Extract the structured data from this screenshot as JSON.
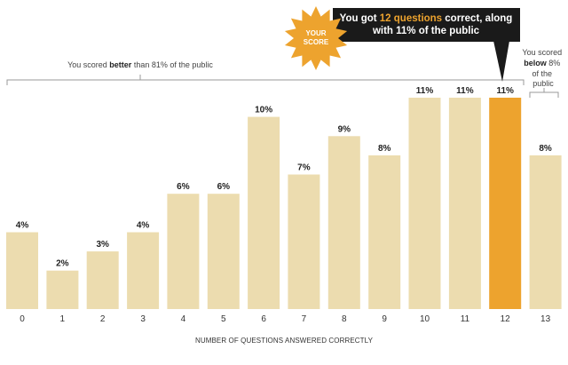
{
  "chart_data": {
    "type": "bar",
    "categories": [
      "0",
      "1",
      "2",
      "3",
      "4",
      "5",
      "6",
      "7",
      "8",
      "9",
      "10",
      "11",
      "12",
      "13"
    ],
    "values": [
      4,
      2,
      3,
      4,
      6,
      6,
      10,
      7,
      9,
      8,
      11,
      11,
      11,
      8
    ],
    "value_labels": [
      "4%",
      "2%",
      "3%",
      "4%",
      "6%",
      "6%",
      "10%",
      "7%",
      "9%",
      "8%",
      "11%",
      "11%",
      "11%",
      "8%"
    ],
    "xlabel": "NUMBER OF QUESTIONS ANSWERED CORRECTLY",
    "ylabel": "",
    "ylim": [
      0,
      11
    ],
    "grid": false,
    "highlight_index": 12,
    "colors": {
      "bar": "#ecdcaf",
      "highlight": "#eda32e",
      "callout": "#1a1a1a"
    }
  },
  "annotations": {
    "better_note": {
      "prefix": "You scored ",
      "emphasis": "better",
      "suffix": " than 81% of the public"
    },
    "below_note": {
      "line1": "You scored",
      "line2_emphasis": "below",
      "line2_suffix": " 8%",
      "line3": "of the",
      "line4": "public"
    },
    "callout": {
      "line1_prefix": "You got ",
      "line1_highlight": "12 questions",
      "line1_suffix": " correct, along",
      "line2": "with 11% of the public"
    },
    "badge": {
      "line1": "YOUR",
      "line2": "SCORE"
    }
  }
}
